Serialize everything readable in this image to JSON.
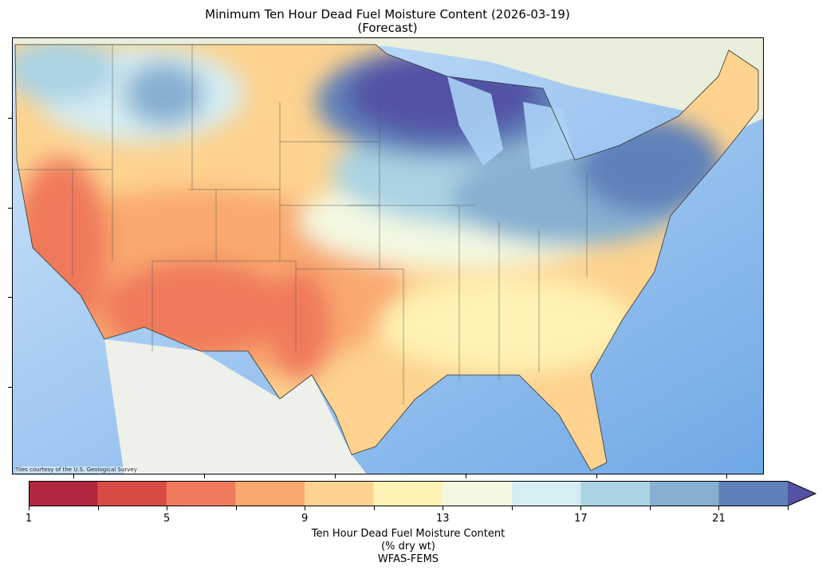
{
  "title": {
    "line1": "Minimum Ten Hour Dead Fuel Moisture Content (2026-03-19)",
    "line2": "(Forecast)"
  },
  "map": {
    "attribution": "Tiles courtesy of the U.S. Geological Survey"
  },
  "chart_data": {
    "type": "heatmap",
    "title": "Minimum Ten Hour Dead Fuel Moisture Content (2026-03-19) (Forecast)",
    "colorbar": {
      "label_lines": [
        "Ten Hour Dead Fuel Moisture Content",
        "(% dry wt)",
        "WFAS-FEMS"
      ],
      "bounds": [
        1,
        3,
        5,
        7,
        9,
        11,
        13,
        15,
        17,
        19,
        21,
        23
      ],
      "ticks": [
        1,
        5,
        9,
        13,
        17,
        21
      ],
      "colors": [
        "#b3263f",
        "#d94c45",
        "#f07a5b",
        "#f9a96e",
        "#fdd38f",
        "#fef3b4",
        "#f3f9e1",
        "#d5edf3",
        "#aad3e3",
        "#85b0d2",
        "#5e81ba"
      ],
      "extend_color": "#5352a5",
      "extend": "max"
    }
  }
}
